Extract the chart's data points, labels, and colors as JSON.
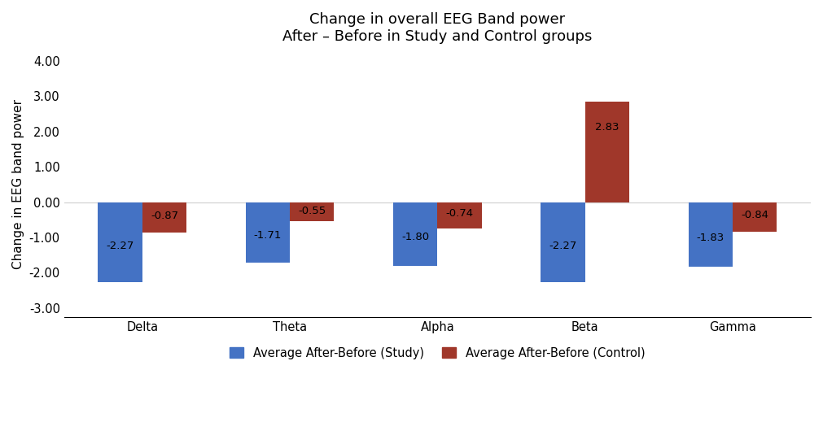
{
  "title_line1": "Change in overall EEG Band power",
  "title_line2": "After – Before in Study and Control groups",
  "categories": [
    "Delta",
    "Theta",
    "Alpha",
    "Beta",
    "Gamma"
  ],
  "study_values": [
    -2.27,
    -1.71,
    -1.8,
    -2.27,
    -1.83
  ],
  "control_values": [
    -0.87,
    -0.55,
    -0.74,
    2.83,
    -0.84
  ],
  "study_color": "#4472C4",
  "control_color": "#A0372A",
  "ylabel": "Change in EEG band power",
  "ylim": [
    -3.25,
    4.25
  ],
  "yticks": [
    -3.0,
    -2.0,
    -1.0,
    0.0,
    1.0,
    2.0,
    3.0,
    4.0
  ],
  "ytick_labels": [
    "-3.00",
    "-2.00",
    "-1.00",
    "0.00",
    "1.00",
    "2.00",
    "3.00",
    "4.00"
  ],
  "legend_study": "Average After-Before (Study)",
  "legend_control": "Average After-Before (Control)",
  "bar_width": 0.3,
  "label_fontsize": 9.5,
  "title_fontsize": 13,
  "axis_fontsize": 11,
  "tick_fontsize": 10.5,
  "legend_fontsize": 10.5
}
